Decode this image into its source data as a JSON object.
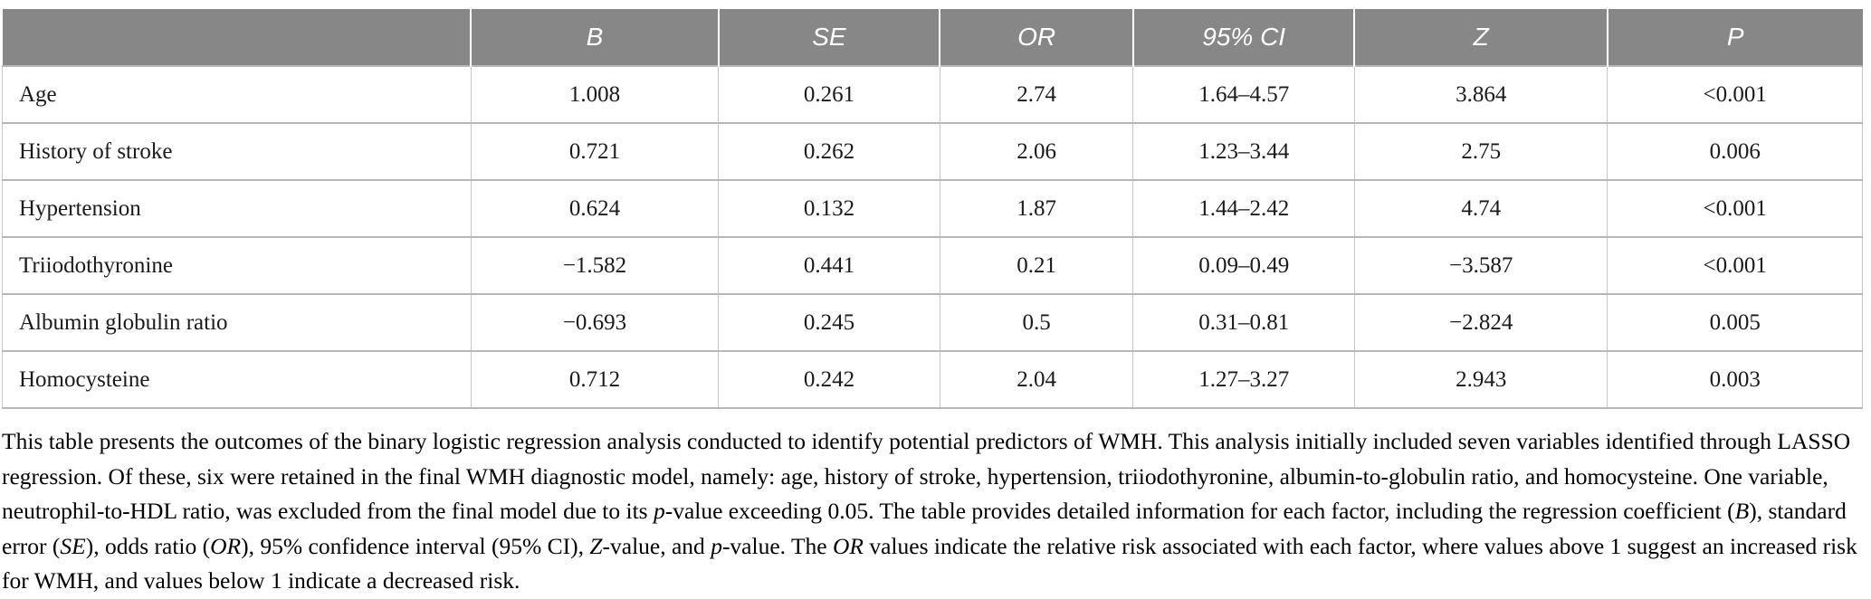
{
  "table": {
    "headers": {
      "variable": "",
      "b": "B",
      "se": "SE",
      "or": "OR",
      "ci": "95% CI",
      "z": "Z",
      "p": "P"
    },
    "rows": [
      {
        "label": "Age",
        "b": "1.008",
        "se": "0.261",
        "or": "2.74",
        "ci": "1.64–4.57",
        "z": "3.864",
        "p": "<0.001"
      },
      {
        "label": "History of stroke",
        "b": "0.721",
        "se": "0.262",
        "or": "2.06",
        "ci": "1.23–3.44",
        "z": "2.75",
        "p": "0.006"
      },
      {
        "label": "Hypertension",
        "b": "0.624",
        "se": "0.132",
        "or": "1.87",
        "ci": "1.44–2.42",
        "z": "4.74",
        "p": "<0.001"
      },
      {
        "label": "Triiodothyronine",
        "b": "−1.582",
        "se": "0.441",
        "or": "0.21",
        "ci": "0.09–0.49",
        "z": "−3.587",
        "p": "<0.001"
      },
      {
        "label": "Albumin globulin ratio",
        "b": "−0.693",
        "se": "0.245",
        "or": "0.5",
        "ci": "0.31–0.81",
        "z": "−2.824",
        "p": "0.005"
      },
      {
        "label": "Homocysteine",
        "b": "0.712",
        "se": "0.242",
        "or": "2.04",
        "ci": "1.27–3.27",
        "z": "2.943",
        "p": "0.003"
      }
    ]
  },
  "caption": {
    "segments": [
      {
        "t": "This table presents the outcomes of the binary logistic regression analysis conducted to identify potential predictors of WMH. This analysis initially included seven variables identified through LASSO regression. Of these, six were retained in the final WMH diagnostic model, namely: age, history of stroke, hypertension, triiodothyronine, albumin-to-globulin ratio, and homocysteine. One variable, neutrophil-to-HDL ratio, was excluded from the final model due to its ",
        "i": false
      },
      {
        "t": "p",
        "i": true
      },
      {
        "t": "-value exceeding 0.05. The table provides detailed information for each factor, including the regression coefficient (",
        "i": false
      },
      {
        "t": "B",
        "i": true
      },
      {
        "t": "), standard error (",
        "i": false
      },
      {
        "t": "SE",
        "i": true
      },
      {
        "t": "), odds ratio (",
        "i": false
      },
      {
        "t": "OR",
        "i": true
      },
      {
        "t": "), 95% confidence interval (95% CI), ",
        "i": false
      },
      {
        "t": "Z",
        "i": true
      },
      {
        "t": "-value, and ",
        "i": false
      },
      {
        "t": "p",
        "i": true
      },
      {
        "t": "-value. The ",
        "i": false
      },
      {
        "t": "OR",
        "i": true
      },
      {
        "t": " values indicate the relative risk associated with each factor, where values above 1 suggest an increased risk for WMH, and values below 1 indicate a decreased risk.",
        "i": false
      }
    ]
  },
  "colors": {
    "header_bg": "#878787",
    "header_text": "#ffffff",
    "border_v": "#c6c6c6",
    "border_h": "#b7b7b7"
  }
}
